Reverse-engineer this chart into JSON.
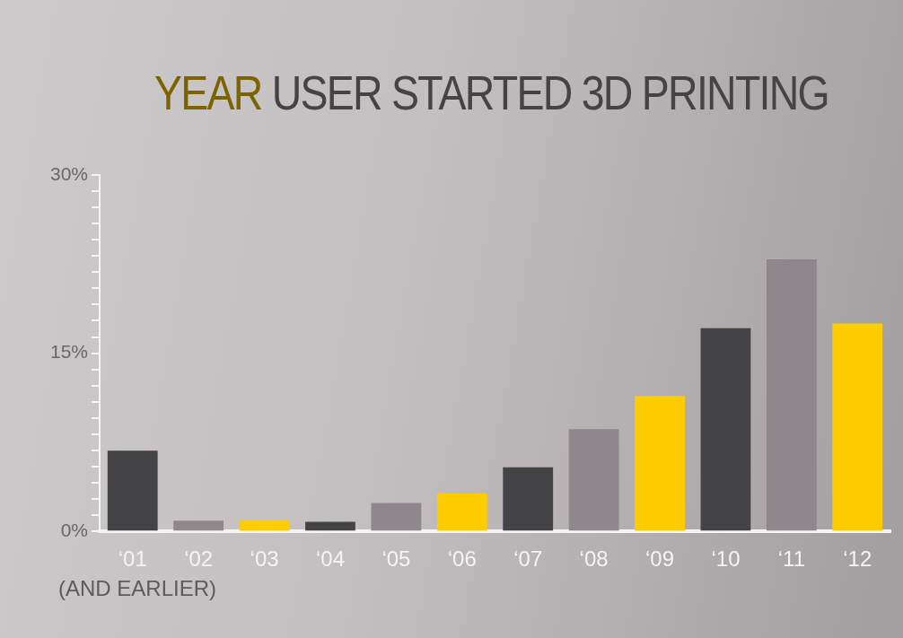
{
  "chart_data": {
    "type": "bar",
    "title": "YEAR USER STARTED 3D PRINTING",
    "categories": [
      "‘01",
      "‘02",
      "‘03",
      "‘04",
      "‘05",
      "‘06",
      "‘07",
      "‘08",
      "‘09",
      "‘10",
      "‘11",
      "‘12"
    ],
    "values": [
      6.8,
      0.9,
      0.9,
      0.8,
      2.4,
      3.2,
      5.4,
      8.6,
      11.4,
      17.1,
      22.9,
      17.5
    ],
    "colors": [
      "#444346",
      "#8e878b",
      "#ffcc00",
      "#444346",
      "#8e878b",
      "#ffcc00",
      "#444346",
      "#8e878b",
      "#ffcc00",
      "#444346",
      "#8e878b",
      "#ffcc00"
    ],
    "ylim": [
      0,
      30
    ],
    "yticks": [
      {
        "value": 0,
        "label": "0%"
      },
      {
        "value": 1.36,
        "label": null
      },
      {
        "value": 2.73,
        "label": null
      },
      {
        "value": 4.09,
        "label": null
      },
      {
        "value": 5.45,
        "label": null
      },
      {
        "value": 6.82,
        "label": null
      },
      {
        "value": 8.18,
        "label": null
      },
      {
        "value": 9.55,
        "label": null
      },
      {
        "value": 10.91,
        "label": null
      },
      {
        "value": 12.27,
        "label": null
      },
      {
        "value": 13.64,
        "label": null
      },
      {
        "value": 15,
        "label": "15%"
      },
      {
        "value": 16.36,
        "label": null
      },
      {
        "value": 17.73,
        "label": null
      },
      {
        "value": 19.09,
        "label": null
      },
      {
        "value": 20.45,
        "label": null
      },
      {
        "value": 21.82,
        "label": null
      },
      {
        "value": 23.18,
        "label": null
      },
      {
        "value": 24.55,
        "label": null
      },
      {
        "value": 25.91,
        "label": null
      },
      {
        "value": 27.27,
        "label": null
      },
      {
        "value": 28.64,
        "label": null
      },
      {
        "value": 30,
        "label": "30%"
      }
    ],
    "grid": false,
    "legend": false,
    "annotations": [
      "(AND EARLIER)"
    ]
  }
}
